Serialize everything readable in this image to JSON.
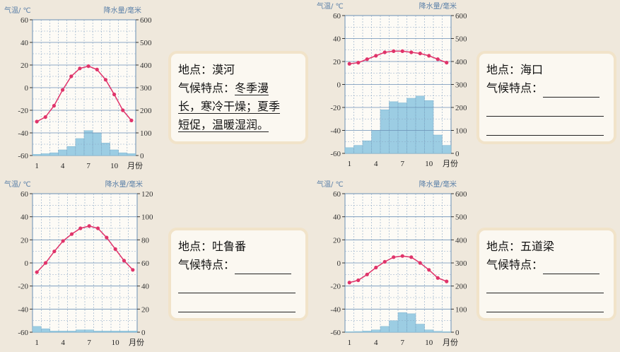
{
  "chart_data": [
    {
      "type": "line+bar",
      "temp_label": "气温/ ℃",
      "precip_label": "降水量/毫米",
      "x_unit_label": "月份",
      "x_ticks": [
        "1",
        "4",
        "7",
        "10"
      ],
      "temp_ticks": [
        "60",
        "40",
        "20",
        "0",
        "-20",
        "-40",
        "-60"
      ],
      "precip_ticks": [
        "600",
        "500",
        "400",
        "300",
        "200",
        "100",
        "0"
      ],
      "temp_ylim": [
        -60,
        60
      ],
      "precip_ylim": [
        0,
        600
      ],
      "months": [
        1,
        2,
        3,
        4,
        5,
        6,
        7,
        8,
        9,
        10,
        11,
        12
      ],
      "temperature": [
        -30,
        -26,
        -16,
        -2,
        10,
        17,
        19,
        16,
        7,
        -6,
        -20,
        -29
      ],
      "precipitation": [
        5,
        8,
        12,
        25,
        40,
        75,
        110,
        100,
        55,
        25,
        12,
        8
      ],
      "colors": {
        "temp": "#e0336a",
        "precip": "#9ccde3"
      }
    },
    {
      "type": "line+bar",
      "temp_label": "气温/ ℃",
      "precip_label": "降水量/毫米",
      "x_unit_label": "月份",
      "x_ticks": [
        "1",
        "4",
        "7",
        "10"
      ],
      "temp_ticks": [
        "60",
        "40",
        "20",
        "0",
        "-20",
        "-40",
        "-60"
      ],
      "precip_ticks": [
        "600",
        "500",
        "400",
        "300",
        "200",
        "100",
        "0"
      ],
      "temp_ylim": [
        -60,
        60
      ],
      "precip_ylim": [
        0,
        600
      ],
      "months": [
        1,
        2,
        3,
        4,
        5,
        6,
        7,
        8,
        9,
        10,
        11,
        12
      ],
      "temperature": [
        18,
        19,
        22,
        25,
        28,
        29,
        29,
        28,
        27,
        25,
        22,
        19
      ],
      "precipitation": [
        25,
        35,
        55,
        100,
        190,
        225,
        220,
        240,
        250,
        230,
        80,
        35
      ],
      "colors": {
        "temp": "#e0336a",
        "precip": "#9ccde3"
      }
    },
    {
      "type": "line+bar",
      "temp_label": "气温/ ℃",
      "precip_label": "降水量/毫米",
      "x_unit_label": "月份",
      "x_ticks": [
        "1",
        "4",
        "7",
        "10"
      ],
      "temp_ticks": [
        "60",
        "40",
        "20",
        "0",
        "-20",
        "-40",
        "-60"
      ],
      "precip_ticks": [
        "120",
        "100",
        "80",
        "60",
        "40",
        "20",
        "0"
      ],
      "temp_ylim": [
        -60,
        60
      ],
      "precip_ylim": [
        0,
        120
      ],
      "months": [
        1,
        2,
        3,
        4,
        5,
        6,
        7,
        8,
        9,
        10,
        11,
        12
      ],
      "temperature": [
        -8,
        0,
        10,
        19,
        25,
        30,
        32,
        30,
        22,
        12,
        2,
        -6
      ],
      "precipitation": [
        5,
        3,
        1,
        1,
        1,
        2,
        2,
        1,
        1,
        1,
        1,
        1
      ],
      "colors": {
        "temp": "#e0336a",
        "precip": "#9ccde3"
      }
    },
    {
      "type": "line+bar",
      "temp_label": "气温/ ℃",
      "precip_label": "降水量/毫米",
      "x_unit_label": "月份",
      "x_ticks": [
        "1",
        "4",
        "7",
        "10"
      ],
      "temp_ticks": [
        "60",
        "40",
        "20",
        "0",
        "-20",
        "-40",
        "-60"
      ],
      "precip_ticks": [
        "600",
        "500",
        "400",
        "300",
        "200",
        "100",
        "0"
      ],
      "temp_ylim": [
        -60,
        60
      ],
      "precip_ylim": [
        0,
        600
      ],
      "months": [
        1,
        2,
        3,
        4,
        5,
        6,
        7,
        8,
        9,
        10,
        11,
        12
      ],
      "temperature": [
        -17,
        -15,
        -10,
        -4,
        1,
        5,
        6,
        5,
        0,
        -6,
        -13,
        -16
      ],
      "precipitation": [
        2,
        3,
        5,
        10,
        25,
        50,
        85,
        80,
        35,
        10,
        4,
        2
      ],
      "colors": {
        "temp": "#e0336a",
        "precip": "#9ccde3"
      }
    }
  ],
  "notes": [
    {
      "place": "地点：漠河",
      "traits_prefix": "气候特点：",
      "traits_1": "冬季漫",
      "traits_2": "长，寒冷干燥；夏季",
      "traits_3": "短促，温暖湿润。"
    },
    {
      "place": "地点：海口",
      "traits_prefix": "气候特点："
    },
    {
      "place": "地点：吐鲁番",
      "traits_prefix": "气候特点："
    },
    {
      "place": "地点：五道梁",
      "traits_prefix": "气候特点："
    }
  ]
}
